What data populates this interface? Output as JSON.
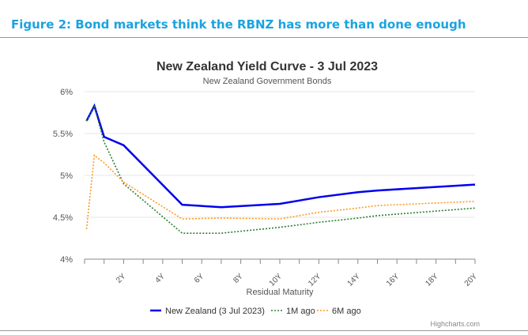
{
  "figure_title": "Figure 2:  Bond markets think the RBNZ has more than done enough",
  "credit": "Highcharts.com",
  "chart_data": {
    "type": "line",
    "title": "New Zealand Yield Curve - 3 Jul 2023",
    "subtitle": "New Zealand Government Bonds",
    "xlabel": "Residual Maturity",
    "ylabel": "",
    "xlim": [
      0,
      20
    ],
    "ylim": [
      4,
      6
    ],
    "yticks": [
      "4%",
      "4.5%",
      "5%",
      "5.5%",
      "6%"
    ],
    "ytick_values": [
      4,
      4.5,
      5,
      5.5,
      6
    ],
    "xticks": [
      "2Y",
      "4Y",
      "6Y",
      "8Y",
      "10Y",
      "12Y",
      "14Y",
      "16Y",
      "18Y",
      "20Y"
    ],
    "xtick_values": [
      2,
      4,
      6,
      8,
      10,
      12,
      14,
      16,
      18,
      20
    ],
    "grid": true,
    "legend_placement": "bottom",
    "series": [
      {
        "name": "New Zealand (3 Jul 2023)",
        "color": "#0000ee",
        "style": "solid",
        "x": [
          0.1,
          0.5,
          1,
          2,
          5,
          7,
          10,
          12,
          14,
          15,
          20
        ],
        "values": [
          5.65,
          5.83,
          5.46,
          5.36,
          4.65,
          4.62,
          4.66,
          4.74,
          4.8,
          4.82,
          4.89
        ]
      },
      {
        "name": "1M ago",
        "color": "#2e7d32",
        "style": "dotted",
        "x": [
          0.1,
          0.5,
          1,
          2,
          5,
          7,
          10,
          12,
          14,
          15,
          20
        ],
        "values": [
          5.65,
          5.82,
          5.4,
          4.9,
          4.31,
          4.31,
          4.38,
          4.44,
          4.49,
          4.52,
          4.61
        ]
      },
      {
        "name": "6M ago",
        "color": "#ff9922",
        "style": "dotted",
        "x": [
          0.1,
          0.5,
          1,
          2,
          5,
          7,
          10,
          12,
          14,
          15,
          20
        ],
        "values": [
          4.36,
          5.24,
          5.15,
          4.92,
          4.48,
          4.49,
          4.48,
          4.56,
          4.61,
          4.64,
          4.69
        ]
      }
    ]
  }
}
